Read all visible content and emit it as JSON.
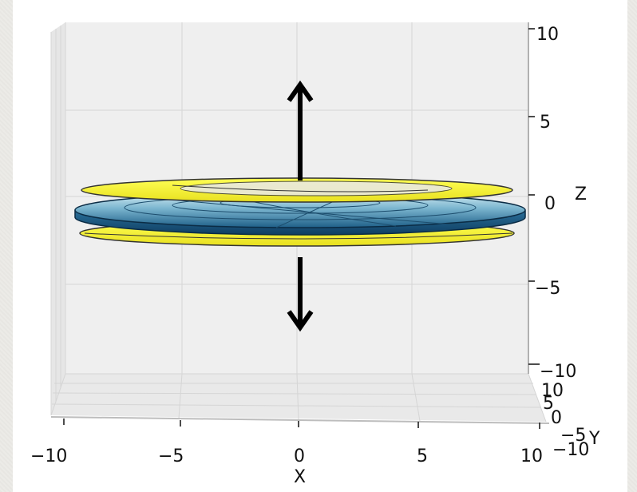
{
  "figure": {
    "x_axis": {
      "label": "X",
      "ticks": [
        "−10",
        "−5",
        "0",
        "5",
        "10"
      ]
    },
    "z_axis": {
      "label": "Z",
      "ticks": [
        "10",
        "5",
        "0",
        "−5",
        "−10"
      ]
    },
    "y_axis": {
      "label": "Y",
      "ticks": [
        "10",
        "5",
        "0",
        "−5",
        "−10"
      ]
    },
    "colors": {
      "pane": "#efefef",
      "disk_yellow": "#ffff33",
      "disk_blue_dark": "#1f5f8b",
      "disk_blue_light": "#d6eef6",
      "arrow": "#000000"
    }
  }
}
